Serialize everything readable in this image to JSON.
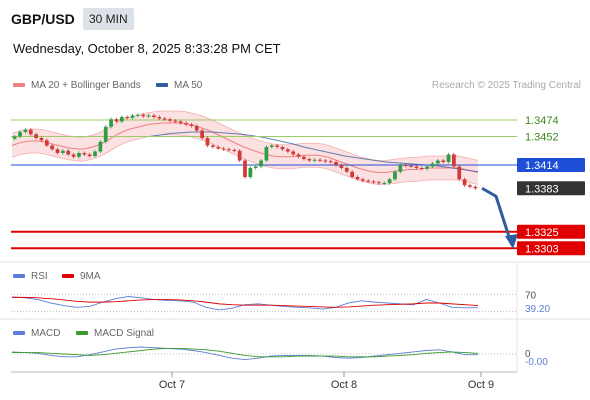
{
  "header": {
    "symbol": "GBP/USD",
    "interval": "30 MIN",
    "datetime": "Wednesday, October 8, 2025 8:33:28 PM CET"
  },
  "legend": {
    "bollinger": "MA 20 + Bollinger Bands",
    "ma50": "MA 50",
    "copyright": "Research © 2025 Trading Central",
    "rsi": "RSI",
    "rsi_ma": "9MA",
    "macd": "MACD",
    "macd_signal": "MACD Signal"
  },
  "colors": {
    "candle_up": "#2e9e44",
    "candle_down": "#d23a3a",
    "bollinger": "#f08080",
    "ma50": "#2f5c9e",
    "resistance": "#9ccc65",
    "pivot": "#1f4fd6",
    "support": "#e00000",
    "last_price_bg": "#333333",
    "arrow": "#2f5c9e"
  },
  "chart_data": [
    {
      "type": "candlestick",
      "title": "GBP/USD 30 MIN",
      "x_ticks": [
        "Oct 7",
        "Oct 8",
        "Oct 9"
      ],
      "y_range": [
        1.329,
        1.349
      ],
      "levels": [
        {
          "value": "1.3474",
          "kind": "resistance"
        },
        {
          "value": "1.3452",
          "kind": "resistance"
        },
        {
          "value": "1.3414",
          "kind": "pivot"
        },
        {
          "value": "1.3383",
          "kind": "last"
        },
        {
          "value": "1.3325",
          "kind": "support"
        },
        {
          "value": "1.3303",
          "kind": "support"
        }
      ],
      "closes": [
        1.3452,
        1.3458,
        1.3461,
        1.3455,
        1.345,
        1.3447,
        1.344,
        1.3435,
        1.343,
        1.3433,
        1.3428,
        1.3425,
        1.343,
        1.3428,
        1.3426,
        1.3432,
        1.3445,
        1.3465,
        1.3475,
        1.3472,
        1.3478,
        1.3477,
        1.348,
        1.3481,
        1.3479,
        1.348,
        1.3478,
        1.3476,
        1.3475,
        1.3473,
        1.3472,
        1.347,
        1.3468,
        1.3466,
        1.346,
        1.345,
        1.344,
        1.3438,
        1.3436,
        1.3435,
        1.3434,
        1.3433,
        1.342,
        1.3398,
        1.341,
        1.3412,
        1.342,
        1.3438,
        1.344,
        1.3438,
        1.3435,
        1.3432,
        1.3428,
        1.3425,
        1.3422,
        1.342,
        1.3421,
        1.342,
        1.3419,
        1.3418,
        1.3414,
        1.341,
        1.3405,
        1.3398,
        1.3395,
        1.3393,
        1.3392,
        1.3391,
        1.339,
        1.339,
        1.3395,
        1.3405,
        1.3414,
        1.3413,
        1.3412,
        1.341,
        1.3409,
        1.3412,
        1.3416,
        1.342,
        1.3418,
        1.3428,
        1.3412,
        1.3395,
        1.3387,
        1.3385,
        1.3383
      ],
      "ma20": [
        1.344,
        1.3443,
        1.3445,
        1.3446,
        1.3446,
        1.3445,
        1.3443,
        1.3441,
        1.3439,
        1.3437,
        1.3436,
        1.3435,
        1.3436,
        1.3438,
        1.3441,
        1.3445,
        1.345,
        1.3455,
        1.3459,
        1.3462,
        1.3464,
        1.3466,
        1.3468,
        1.3469,
        1.347,
        1.347,
        1.347,
        1.347,
        1.3469,
        1.3467,
        1.3465,
        1.3462,
        1.3459,
        1.3455,
        1.3451,
        1.3447,
        1.3443,
        1.3439,
        1.3436,
        1.3433,
        1.343,
        1.3428,
        1.3426,
        1.3425,
        1.3425,
        1.3425,
        1.3426,
        1.3427,
        1.3427,
        1.3427,
        1.3426,
        1.3424,
        1.3421,
        1.3418,
        1.3415,
        1.3412,
        1.3409,
        1.3407,
        1.3405,
        1.3404,
        1.3404,
        1.3405,
        1.3406,
        1.3407,
        1.3408,
        1.3408,
        1.3409,
        1.341,
        1.341,
        1.341,
        1.341,
        1.341,
        1.341,
        1.3408,
        1.3406,
        1.3404
      ],
      "ma50": [
        1.3452,
        1.3454,
        1.3456,
        1.3457,
        1.3458,
        1.3458,
        1.3458,
        1.3457,
        1.3456,
        1.3455,
        1.3453,
        1.3451,
        1.3448,
        1.3445,
        1.3442,
        1.3438,
        1.3435,
        1.3432,
        1.3429,
        1.3426,
        1.3424,
        1.3422,
        1.342,
        1.3418,
        1.3417,
        1.3416,
        1.3415,
        1.3414,
        1.3413,
        1.3411,
        1.3409,
        1.3407,
        1.3405
      ],
      "band_width": 0.0016
    },
    {
      "type": "line",
      "title": "RSI",
      "levels": [
        "70",
        "39.20"
      ],
      "series": [
        {
          "name": "RSI",
          "values": [
            64,
            62,
            58,
            50,
            44,
            40,
            42,
            52,
            60,
            65,
            62,
            58,
            56,
            55,
            52,
            40,
            34,
            38,
            46,
            48,
            45,
            42,
            40,
            39,
            36,
            40,
            50,
            55,
            52,
            50,
            48,
            46,
            58,
            50,
            40,
            39,
            39.2
          ]
        },
        {
          "name": "9MA",
          "values": [
            63,
            63,
            62,
            60,
            57,
            54,
            52,
            52,
            53,
            55,
            57,
            58,
            58,
            57,
            55,
            52,
            48,
            46,
            45,
            45,
            45,
            44,
            43,
            42,
            41,
            40,
            41,
            43,
            45,
            46,
            47,
            48,
            50,
            50,
            48,
            46,
            44
          ]
        }
      ]
    },
    {
      "type": "line",
      "title": "MACD",
      "levels": [
        "0",
        "-0.00"
      ],
      "series": [
        {
          "name": "MACD",
          "values": [
            3,
            2,
            1,
            -2,
            -4,
            -4,
            -1,
            3,
            7,
            9,
            10,
            9,
            8,
            7,
            5,
            2,
            -2,
            -6,
            -8,
            -6,
            -3,
            -2,
            -2,
            -2,
            -3,
            -5,
            -6,
            -5,
            -3,
            -1,
            1,
            3,
            5,
            6,
            3,
            -1,
            -1
          ]
        },
        {
          "name": "MACD Signal",
          "values": [
            2,
            2,
            2,
            1,
            0,
            -1,
            -2,
            -1,
            1,
            3,
            5,
            7,
            8,
            8,
            7,
            6,
            4,
            1,
            -2,
            -4,
            -4,
            -4,
            -3,
            -3,
            -3,
            -3,
            -4,
            -4,
            -4,
            -3,
            -2,
            -1,
            1,
            2,
            3,
            2,
            1
          ]
        }
      ]
    }
  ]
}
